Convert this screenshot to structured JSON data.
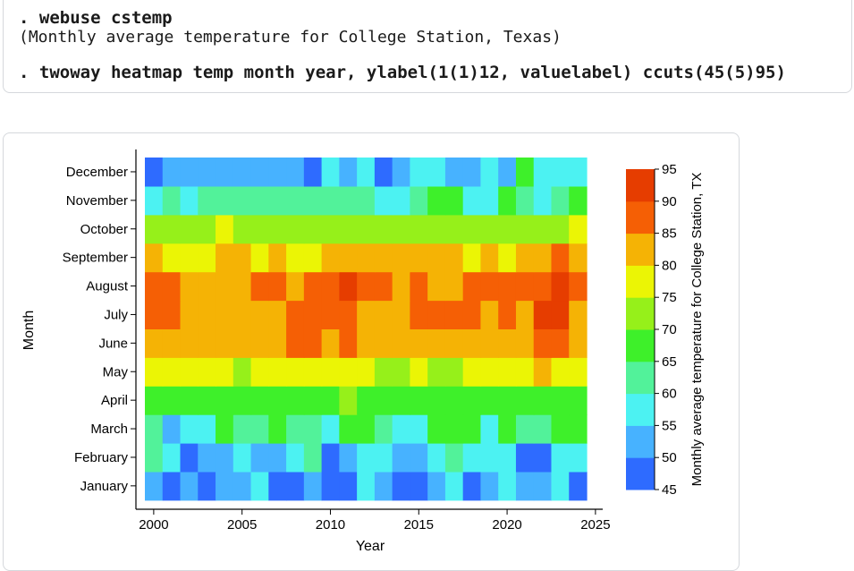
{
  "commands": {
    "line1": ". webuse cstemp",
    "line2": "(Monthly average temperature for College Station, Texas)",
    "line3": ". twoway heatmap temp month year, ylabel(1(1)12, valuelabel) ccuts(45(5)95)"
  },
  "chart_data": {
    "type": "heatmap",
    "xlabel": "Year",
    "ylabel": "Month",
    "legend_title": "Monthly average temperature for College Station, TX",
    "x_ticks": [
      2000,
      2005,
      2010,
      2015,
      2020,
      2025
    ],
    "xlim": [
      1999.5,
      2025.5
    ],
    "years": [
      2000,
      2001,
      2002,
      2003,
      2004,
      2005,
      2006,
      2007,
      2008,
      2009,
      2010,
      2011,
      2012,
      2013,
      2014,
      2015,
      2016,
      2017,
      2018,
      2019,
      2020,
      2021,
      2022,
      2023,
      2024
    ],
    "months": [
      "January",
      "February",
      "March",
      "April",
      "May",
      "June",
      "July",
      "August",
      "September",
      "October",
      "November",
      "December"
    ],
    "cuts": [
      45,
      50,
      55,
      60,
      65,
      70,
      75,
      80,
      85,
      90,
      95
    ],
    "colors": [
      "#2e6bff",
      "#47b2ff",
      "#4cf2f2",
      "#52f29a",
      "#3ef02a",
      "#96f01a",
      "#ebf505",
      "#f5b305",
      "#f55f05",
      "#e63d00"
    ],
    "legend_position": "right",
    "values": [
      [
        52,
        47,
        52,
        47,
        52,
        52,
        57,
        47,
        47,
        52,
        47,
        47,
        57,
        52,
        47,
        47,
        52,
        57,
        47,
        52,
        57,
        52,
        52,
        57,
        47
      ],
      [
        62,
        57,
        47,
        52,
        52,
        57,
        52,
        52,
        57,
        62,
        47,
        52,
        57,
        57,
        52,
        52,
        57,
        62,
        57,
        57,
        57,
        47,
        47,
        57,
        57
      ],
      [
        62,
        52,
        57,
        57,
        67,
        62,
        62,
        67,
        62,
        62,
        57,
        67,
        67,
        62,
        57,
        57,
        67,
        67,
        67,
        57,
        67,
        62,
        62,
        67,
        67
      ],
      [
        67,
        67,
        67,
        67,
        67,
        67,
        67,
        67,
        67,
        67,
        67,
        72,
        67,
        67,
        67,
        67,
        67,
        67,
        67,
        67,
        67,
        67,
        67,
        67,
        67
      ],
      [
        77,
        77,
        77,
        77,
        77,
        72,
        77,
        77,
        77,
        77,
        77,
        77,
        77,
        72,
        72,
        77,
        72,
        72,
        77,
        77,
        77,
        77,
        82,
        77,
        77
      ],
      [
        82,
        82,
        82,
        82,
        82,
        82,
        82,
        82,
        87,
        87,
        82,
        87,
        82,
        82,
        82,
        82,
        82,
        82,
        82,
        82,
        82,
        82,
        87,
        87,
        82
      ],
      [
        87,
        87,
        82,
        82,
        82,
        82,
        82,
        82,
        87,
        87,
        87,
        87,
        82,
        82,
        82,
        87,
        87,
        87,
        87,
        82,
        87,
        82,
        92,
        92,
        82
      ],
      [
        87,
        87,
        82,
        82,
        82,
        82,
        87,
        87,
        82,
        87,
        87,
        92,
        87,
        87,
        82,
        87,
        82,
        82,
        87,
        87,
        87,
        87,
        87,
        92,
        87
      ],
      [
        82,
        77,
        77,
        77,
        82,
        82,
        77,
        82,
        77,
        77,
        82,
        82,
        82,
        82,
        82,
        82,
        82,
        82,
        77,
        82,
        77,
        82,
        82,
        87,
        82
      ],
      [
        72,
        72,
        72,
        72,
        77,
        72,
        72,
        72,
        72,
        72,
        72,
        72,
        72,
        72,
        72,
        72,
        72,
        72,
        72,
        72,
        72,
        72,
        72,
        72,
        77
      ],
      [
        57,
        62,
        57,
        62,
        62,
        62,
        62,
        62,
        62,
        62,
        62,
        62,
        62,
        57,
        57,
        62,
        67,
        67,
        57,
        57,
        67,
        62,
        57,
        62,
        67
      ],
      [
        47,
        52,
        52,
        52,
        52,
        52,
        52,
        52,
        52,
        47,
        57,
        52,
        57,
        47,
        52,
        57,
        57,
        52,
        52,
        57,
        52,
        67,
        57,
        57,
        57
      ]
    ]
  }
}
